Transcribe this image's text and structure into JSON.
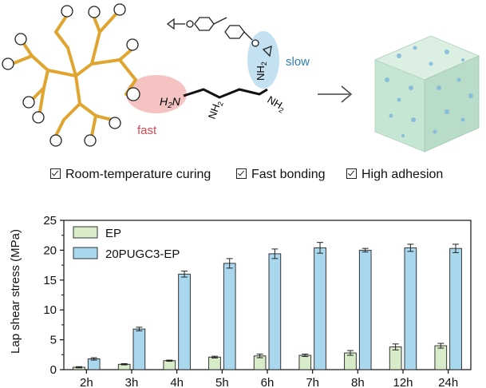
{
  "scheme": {
    "fast_label": "fast",
    "slow_label": "slow",
    "amine_groups": [
      "H2N",
      "NH2",
      "NH2",
      "NH2"
    ]
  },
  "features": [
    "Room-temperature curing",
    "Fast bonding",
    "High adhesion"
  ],
  "colors": {
    "ep_bar": "#d9ecc9",
    "pugc_bar": "#a9d7ee",
    "dendrimer": "#e0a530",
    "fast_highlight": "#f4b9b9",
    "slow_highlight": "#b9dcef",
    "cube": "#c6e6d4"
  },
  "chart_data": {
    "type": "bar",
    "categories": [
      "2h",
      "3h",
      "4h",
      "5h",
      "6h",
      "7h",
      "8h",
      "12h",
      "24h"
    ],
    "series": [
      {
        "name": "EP",
        "values": [
          0.4,
          0.9,
          1.5,
          2.1,
          2.3,
          2.4,
          2.8,
          3.8,
          4.0
        ],
        "errors": [
          0.1,
          0.1,
          0.1,
          0.15,
          0.3,
          0.2,
          0.4,
          0.5,
          0.4
        ]
      },
      {
        "name": "20PUGC3-EP",
        "values": [
          1.8,
          6.8,
          16.0,
          17.8,
          19.4,
          20.4,
          20.0,
          20.4,
          20.3
        ],
        "errors": [
          0.2,
          0.3,
          0.5,
          0.8,
          0.8,
          0.9,
          0.3,
          0.6,
          0.7
        ]
      }
    ],
    "ylabel": "Lap shear stress (MPa)",
    "xlabel": "",
    "ylim": [
      0,
      25
    ],
    "yticks": [
      "0",
      "5",
      "10",
      "15",
      "20",
      "25"
    ],
    "legend": "top-left",
    "grid": false
  }
}
